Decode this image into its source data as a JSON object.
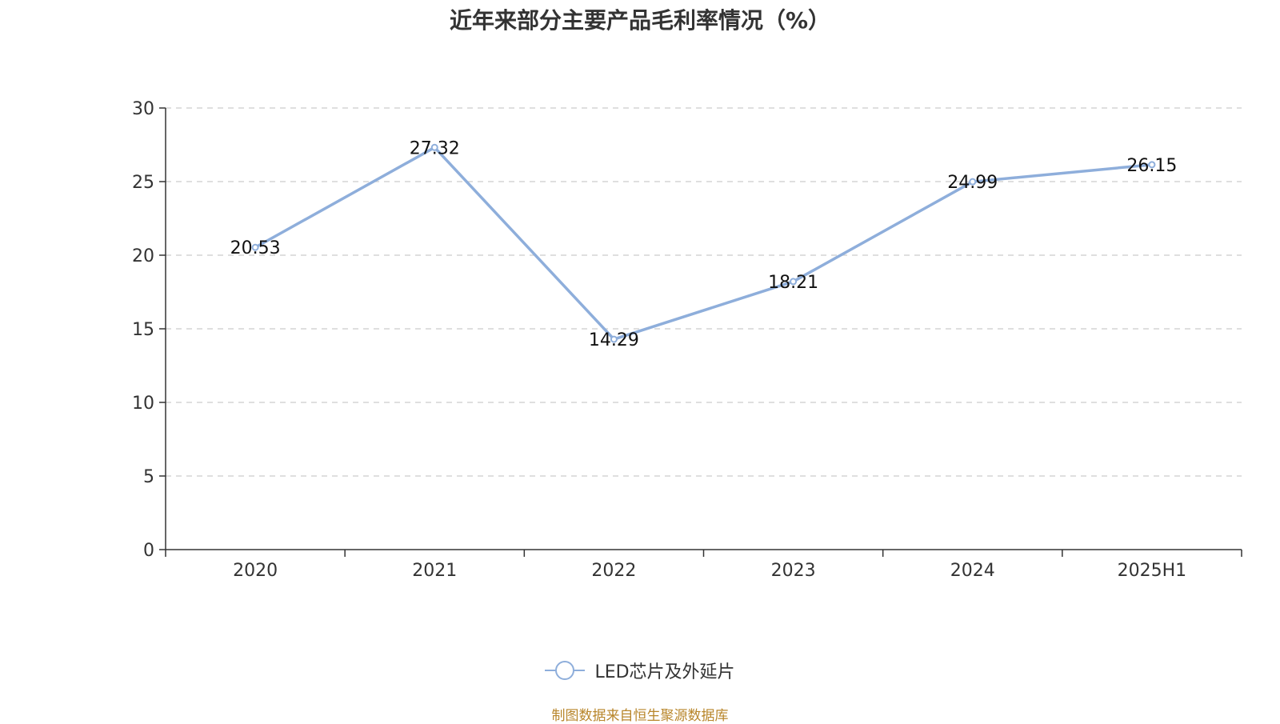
{
  "title": "近年来部分主要产品毛利率情况（%）",
  "source": "制图数据来自恒生聚源数据库",
  "colors": {
    "line": "#8eaedb",
    "axis": "#333333",
    "grid": "#cccccc",
    "source": "#b8862b"
  },
  "chart_data": {
    "type": "line",
    "title": "近年来部分主要产品毛利率情况（%）",
    "categories": [
      "2020",
      "2021",
      "2022",
      "2023",
      "2024",
      "2025H1"
    ],
    "series": [
      {
        "name": "LED芯片及外延片",
        "values": [
          20.53,
          27.32,
          14.29,
          18.21,
          24.99,
          26.15
        ]
      }
    ],
    "data_labels": [
      "20.53",
      "27.32",
      "14.29",
      "18.21",
      "24.99",
      "26.15"
    ],
    "ylim": [
      0,
      30
    ],
    "yticks": [
      "0",
      "5",
      "10",
      "15",
      "20",
      "25",
      "30"
    ],
    "grid": true,
    "grid_style": "dashed",
    "legend_position": "bottom-center"
  }
}
